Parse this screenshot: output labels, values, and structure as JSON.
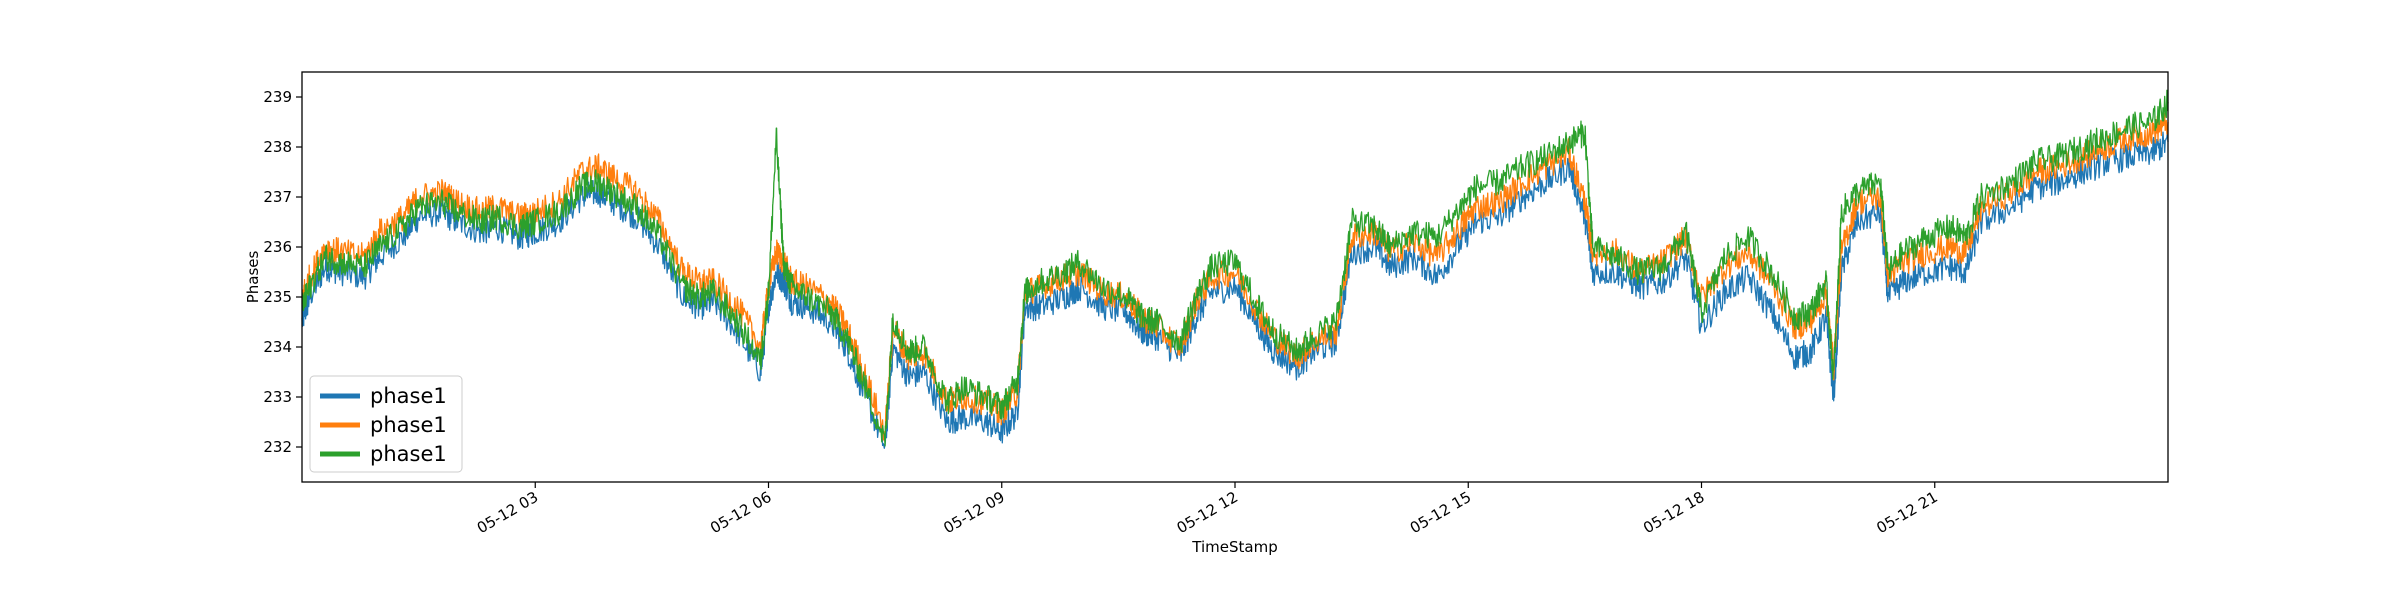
{
  "chart_data": {
    "type": "line",
    "title": "",
    "xlabel": "TimeStamp",
    "ylabel": "Phases",
    "x_ticks": [
      "05-12 03",
      "05-12 06",
      "05-12 09",
      "05-12 12",
      "05-12 15",
      "05-12 18",
      "05-12 21"
    ],
    "x_tick_hours": [
      3,
      6,
      9,
      12,
      15,
      18,
      21
    ],
    "xlim_hours": [
      0,
      24
    ],
    "ylim": [
      231.3,
      239.5
    ],
    "y_ticks": [
      232,
      233,
      234,
      235,
      236,
      237,
      238,
      239
    ],
    "grid": false,
    "legend_position": "lower-left",
    "series": [
      {
        "name": "phase1",
        "color": "#1f77b4",
        "x": [
          0,
          0.1,
          0.3,
          0.5,
          0.8,
          1.0,
          1.3,
          1.5,
          1.8,
          2.0,
          2.3,
          2.5,
          2.8,
          3.0,
          3.3,
          3.6,
          3.8,
          4.0,
          4.3,
          4.6,
          4.9,
          5.1,
          5.3,
          5.6,
          5.9,
          6.0,
          6.1,
          6.2,
          6.3,
          6.5,
          6.8,
          7.0,
          7.2,
          7.5,
          7.6,
          7.8,
          8.0,
          8.3,
          8.5,
          8.8,
          9.0,
          9.2,
          9.3,
          9.5,
          9.8,
          10.0,
          10.3,
          10.6,
          10.8,
          11.0,
          11.3,
          11.5,
          11.7,
          12.0,
          12.3,
          12.5,
          12.8,
          13.0,
          13.3,
          13.5,
          13.8,
          14.0,
          14.3,
          14.6,
          14.9,
          15.1,
          15.4,
          15.7,
          16.0,
          16.3,
          16.5,
          16.6,
          16.9,
          17.2,
          17.5,
          17.8,
          18.0,
          18.3,
          18.6,
          18.9,
          19.2,
          19.4,
          19.6,
          19.7,
          19.8,
          20.0,
          20.3,
          20.4,
          20.6,
          20.9,
          21.2,
          21.4,
          21.6,
          22.0,
          22.3,
          22.6,
          22.9,
          23.2,
          23.5,
          23.8,
          24.0
        ],
        "values": [
          234.5,
          235.0,
          235.6,
          235.5,
          235.4,
          235.8,
          236.2,
          236.6,
          236.7,
          236.5,
          236.3,
          236.4,
          236.2,
          236.3,
          236.5,
          237.0,
          237.1,
          236.9,
          236.6,
          236.0,
          235.0,
          234.8,
          234.9,
          234.3,
          233.5,
          234.8,
          235.5,
          235.3,
          234.9,
          234.8,
          234.5,
          234.0,
          233.2,
          232.0,
          234.0,
          233.4,
          233.5,
          232.5,
          232.6,
          232.5,
          232.3,
          232.7,
          234.8,
          234.8,
          235.0,
          235.2,
          234.8,
          234.7,
          234.3,
          234.2,
          233.8,
          234.6,
          235.1,
          235.2,
          234.4,
          233.9,
          233.6,
          233.9,
          234.1,
          235.9,
          236.0,
          235.6,
          235.8,
          235.4,
          236.1,
          236.5,
          236.6,
          237.0,
          237.3,
          237.6,
          236.6,
          235.5,
          235.5,
          235.2,
          235.3,
          235.8,
          234.4,
          235.1,
          235.4,
          234.7,
          233.8,
          233.9,
          234.6,
          233.0,
          235.5,
          236.5,
          236.7,
          235.0,
          235.3,
          235.5,
          235.6,
          235.5,
          236.5,
          236.8,
          237.2,
          237.3,
          237.5,
          237.7,
          237.8,
          237.9,
          238.1
        ]
      },
      {
        "name": "phase1",
        "color": "#ff7f0e",
        "x": [
          0,
          0.1,
          0.3,
          0.5,
          0.8,
          1.0,
          1.3,
          1.5,
          1.8,
          2.0,
          2.3,
          2.5,
          2.8,
          3.0,
          3.3,
          3.6,
          3.8,
          4.0,
          4.3,
          4.6,
          4.9,
          5.1,
          5.3,
          5.6,
          5.9,
          6.0,
          6.1,
          6.2,
          6.3,
          6.5,
          6.8,
          7.0,
          7.2,
          7.5,
          7.6,
          7.8,
          8.0,
          8.3,
          8.5,
          8.8,
          9.0,
          9.2,
          9.3,
          9.5,
          9.8,
          10.0,
          10.3,
          10.6,
          10.8,
          11.0,
          11.3,
          11.5,
          11.7,
          12.0,
          12.3,
          12.5,
          12.8,
          13.0,
          13.3,
          13.5,
          13.8,
          14.0,
          14.3,
          14.6,
          14.9,
          15.1,
          15.4,
          15.7,
          16.0,
          16.3,
          16.5,
          16.6,
          16.9,
          17.2,
          17.5,
          17.8,
          18.0,
          18.3,
          18.6,
          18.9,
          19.2,
          19.4,
          19.6,
          19.7,
          19.8,
          20.0,
          20.3,
          20.4,
          20.6,
          20.9,
          21.2,
          21.4,
          21.6,
          22.0,
          22.3,
          22.6,
          22.9,
          23.2,
          23.5,
          23.8,
          24.0
        ],
        "values": [
          235.0,
          235.4,
          236.0,
          235.9,
          235.8,
          236.3,
          236.6,
          237.0,
          237.1,
          236.9,
          236.7,
          236.8,
          236.6,
          236.7,
          236.9,
          237.5,
          237.6,
          237.4,
          237.1,
          236.5,
          235.5,
          235.3,
          235.3,
          234.8,
          234.0,
          235.2,
          235.9,
          235.7,
          235.3,
          235.2,
          234.9,
          234.4,
          233.6,
          232.3,
          234.4,
          233.8,
          233.9,
          232.9,
          233.0,
          232.9,
          232.7,
          233.1,
          235.1,
          235.2,
          235.4,
          235.5,
          235.1,
          235.0,
          234.6,
          234.4,
          234.0,
          234.9,
          235.4,
          235.5,
          234.7,
          234.2,
          233.8,
          234.1,
          234.3,
          236.2,
          236.3,
          235.9,
          236.1,
          235.8,
          236.4,
          236.8,
          236.9,
          237.3,
          237.6,
          237.9,
          236.9,
          235.9,
          235.9,
          235.5,
          235.7,
          236.2,
          235.0,
          235.6,
          235.9,
          235.3,
          234.4,
          234.5,
          235.1,
          233.6,
          235.9,
          236.9,
          237.0,
          235.4,
          235.7,
          235.9,
          236.0,
          235.9,
          236.8,
          237.1,
          237.5,
          237.6,
          237.8,
          238.0,
          238.2,
          238.3,
          238.5
        ]
      },
      {
        "name": "phase1",
        "color": "#2ca02c",
        "x": [
          0,
          0.1,
          0.3,
          0.5,
          0.8,
          1.0,
          1.3,
          1.5,
          1.8,
          2.0,
          2.3,
          2.5,
          2.8,
          3.0,
          3.3,
          3.6,
          3.8,
          4.0,
          4.3,
          4.6,
          4.9,
          5.1,
          5.3,
          5.6,
          5.9,
          6.0,
          6.1,
          6.2,
          6.3,
          6.5,
          6.8,
          7.0,
          7.2,
          7.5,
          7.6,
          7.8,
          8.0,
          8.3,
          8.5,
          8.8,
          9.0,
          9.2,
          9.3,
          9.5,
          9.8,
          10.0,
          10.3,
          10.6,
          10.8,
          11.0,
          11.3,
          11.5,
          11.7,
          12.0,
          12.3,
          12.5,
          12.8,
          13.0,
          13.3,
          13.5,
          13.8,
          14.0,
          14.3,
          14.6,
          14.9,
          15.1,
          15.4,
          15.7,
          16.0,
          16.3,
          16.5,
          16.6,
          16.9,
          17.2,
          17.5,
          17.8,
          18.0,
          18.3,
          18.6,
          18.9,
          19.2,
          19.4,
          19.6,
          19.7,
          19.8,
          20.0,
          20.3,
          20.4,
          20.6,
          20.9,
          21.2,
          21.4,
          21.6,
          22.0,
          22.3,
          22.6,
          22.9,
          23.2,
          23.5,
          23.8,
          24.0
        ],
        "values": [
          234.8,
          235.2,
          235.8,
          235.7,
          235.6,
          236.0,
          236.4,
          236.8,
          236.9,
          236.7,
          236.5,
          236.6,
          236.4,
          236.5,
          236.7,
          237.2,
          237.3,
          237.1,
          236.8,
          236.2,
          235.2,
          235.0,
          235.1,
          234.5,
          233.7,
          235.1,
          238.2,
          235.6,
          235.2,
          235.0,
          234.7,
          234.2,
          233.4,
          232.1,
          234.6,
          233.9,
          234.0,
          232.9,
          233.2,
          233.0,
          232.8,
          233.3,
          235.1,
          235.3,
          235.5,
          235.7,
          235.2,
          235.0,
          234.6,
          234.5,
          234.1,
          235.0,
          235.6,
          235.7,
          234.8,
          234.3,
          233.9,
          234.2,
          234.5,
          236.5,
          236.4,
          236.0,
          236.3,
          236.2,
          236.8,
          237.2,
          237.3,
          237.6,
          237.8,
          238.1,
          238.3,
          236.0,
          235.8,
          235.5,
          235.6,
          236.3,
          234.7,
          235.8,
          236.2,
          235.5,
          234.6,
          234.7,
          235.3,
          233.4,
          236.7,
          237.1,
          237.3,
          235.5,
          235.9,
          236.2,
          236.4,
          236.2,
          237.0,
          237.3,
          237.7,
          237.8,
          238.0,
          238.2,
          238.4,
          238.5,
          238.9
        ]
      }
    ]
  }
}
